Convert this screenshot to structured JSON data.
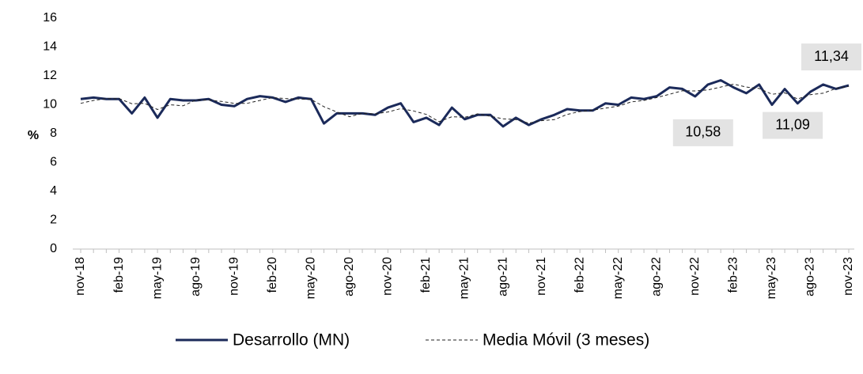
{
  "chart_data": {
    "type": "line",
    "y_label": "%",
    "categories": [
      "nov-18",
      null,
      null,
      "feb-19",
      null,
      null,
      "may-19",
      null,
      null,
      "ago-19",
      null,
      null,
      "nov-19",
      null,
      null,
      "feb-20",
      null,
      null,
      "may-20",
      null,
      null,
      "ago-20",
      null,
      null,
      "nov-20",
      null,
      null,
      "feb-21",
      null,
      null,
      "may-21",
      null,
      null,
      "ago-21",
      null,
      null,
      "nov-21",
      null,
      null,
      "feb-22",
      null,
      null,
      "may-22",
      null,
      null,
      "ago-22",
      null,
      null,
      "nov-22",
      null,
      null,
      "feb-23",
      null,
      null,
      "may-23",
      null,
      null,
      "ago-23",
      null,
      null,
      "nov-23"
    ],
    "series": [
      {
        "name": "Desarrollo (MN)",
        "color": "#1b2a5a",
        "style": "solid",
        "values": [
          10.4,
          10.5,
          10.4,
          10.4,
          9.4,
          10.5,
          9.1,
          10.4,
          10.3,
          10.3,
          10.4,
          10.0,
          9.9,
          10.4,
          10.6,
          10.5,
          10.2,
          10.5,
          10.4,
          8.7,
          9.4,
          9.4,
          9.4,
          9.3,
          9.8,
          10.1,
          8.8,
          9.1,
          8.6,
          9.8,
          9.0,
          9.3,
          9.3,
          8.5,
          9.1,
          8.6,
          9.0,
          9.3,
          9.7,
          9.6,
          9.6,
          10.1,
          10.0,
          10.5,
          10.4,
          10.6,
          11.2,
          11.1,
          10.58,
          11.4,
          11.7,
          11.2,
          10.8,
          11.4,
          10.0,
          11.09,
          10.1,
          10.9,
          11.4,
          11.1,
          11.34
        ],
        "value_labels": [
          null,
          null,
          null,
          null,
          null,
          null,
          null,
          null,
          null,
          null,
          null,
          null,
          null,
          null,
          null,
          null,
          null,
          null,
          null,
          null,
          null,
          null,
          null,
          null,
          null,
          null,
          null,
          null,
          null,
          null,
          null,
          null,
          null,
          null,
          null,
          null,
          null,
          null,
          null,
          null,
          null,
          null,
          null,
          null,
          null,
          null,
          null,
          null,
          "10,58",
          null,
          null,
          null,
          null,
          null,
          null,
          "11,09",
          null,
          null,
          null,
          null,
          "11,34"
        ]
      },
      {
        "name": "Media Móvil (3 meses)",
        "color": "#222222",
        "style": "dashed",
        "values": [
          10.1,
          10.3,
          10.43,
          10.43,
          10.07,
          10.1,
          9.67,
          10.0,
          9.93,
          10.33,
          10.33,
          10.23,
          10.1,
          10.1,
          10.3,
          10.5,
          10.43,
          10.4,
          10.37,
          9.87,
          9.5,
          9.17,
          9.4,
          9.37,
          9.5,
          9.73,
          9.57,
          9.33,
          8.83,
          9.17,
          9.13,
          9.37,
          9.2,
          9.03,
          8.97,
          8.73,
          8.9,
          8.97,
          9.33,
          9.53,
          9.63,
          9.77,
          9.9,
          10.2,
          10.3,
          10.5,
          10.73,
          10.97,
          10.96,
          11.03,
          11.23,
          11.43,
          11.23,
          11.13,
          10.73,
          10.83,
          10.4,
          10.7,
          10.8,
          11.13,
          11.28
        ]
      }
    ],
    "ylim": [
      0,
      16
    ],
    "yticks": [
      0,
      2,
      4,
      6,
      8,
      10,
      12,
      14,
      16
    ],
    "grid": false,
    "legend": "bottom"
  }
}
